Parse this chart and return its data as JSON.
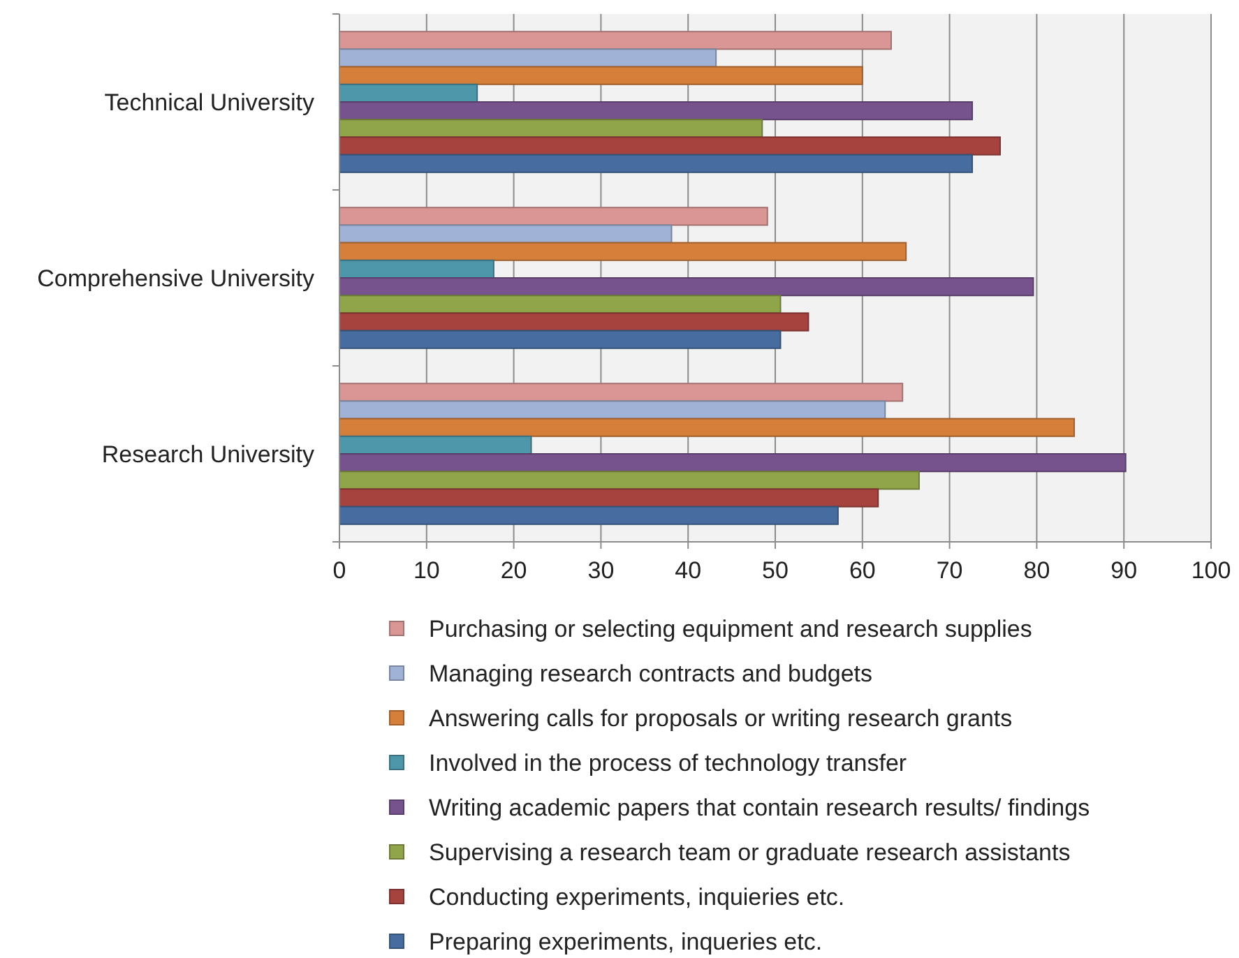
{
  "chart_data": {
    "type": "bar",
    "orientation": "horizontal",
    "categories": [
      "Technical University",
      "Comprehensive University",
      "Research University"
    ],
    "series": [
      {
        "name": "Purchasing or selecting equipment and research supplies",
        "color": "#d99694",
        "values": [
          63.3,
          49.1,
          64.6
        ]
      },
      {
        "name": "Managing research contracts and budgets",
        "color": "#a0b2d6",
        "values": [
          43.2,
          38.1,
          62.6
        ]
      },
      {
        "name": "Answering calls for proposals or writing research grants",
        "color": "#d57f3a",
        "values": [
          60,
          65,
          84.3
        ]
      },
      {
        "name": "Involved in the process of technology transfer",
        "color": "#4e96a9",
        "values": [
          15.8,
          17.7,
          22
        ]
      },
      {
        "name": "Writing academic papers that contain research results/ findings",
        "color": "#76538c",
        "values": [
          72.6,
          79.6,
          90.2
        ]
      },
      {
        "name": "Supervising a research team or graduate research assistants",
        "color": "#90a44a",
        "values": [
          48.5,
          50.6,
          66.5
        ]
      },
      {
        "name": "Conducting experiments, inquieries etc.",
        "color": "#a6433f",
        "values": [
          75.8,
          53.8,
          61.8
        ]
      },
      {
        "name": "Preparing experiments, inqueries etc.",
        "color": "#476da0",
        "values": [
          72.6,
          50.6,
          57.2
        ]
      }
    ],
    "xlim": [
      0,
      100
    ],
    "xticks": [
      0,
      10,
      20,
      30,
      40,
      50,
      60,
      70,
      80,
      90,
      100
    ],
    "grid": "x",
    "legend": "bottom"
  }
}
